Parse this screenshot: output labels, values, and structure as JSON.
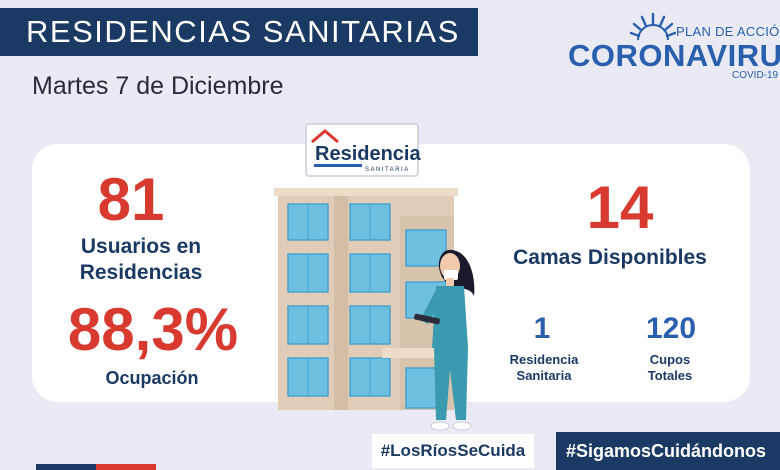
{
  "header": {
    "title": "RESIDENCIAS SANITARIAS",
    "date": "Martes 7 de Diciembre"
  },
  "logo": {
    "plan": "PLAN DE ACCIÓN",
    "name": "CORONAVIRUS",
    "sub": "COVID-19"
  },
  "sign": {
    "name": "Residencia",
    "sub": "SANITARIA"
  },
  "stats": {
    "users_value": "81",
    "users_label_line1": "Usuarios en",
    "users_label_line2": "Residencias",
    "occupancy_value": "88,3%",
    "occupancy_label": "Ocupación",
    "beds_value": "14",
    "beds_label": "Camas Disponibles",
    "residences_value": "1",
    "residences_label_line1": "Residencia",
    "residences_label_line2": "Sanitaria",
    "cupos_value": "120",
    "cupos_label_line1": "Cupos",
    "cupos_label_line2": "Totales"
  },
  "hashtags": {
    "left": "#LosRíosSeCuida",
    "right": "#SigamosCuidándonos"
  },
  "colors": {
    "navy": "#1b3a63",
    "red": "#d93a2f",
    "blue": "#2a5fae",
    "background": "#e9eaf3"
  }
}
